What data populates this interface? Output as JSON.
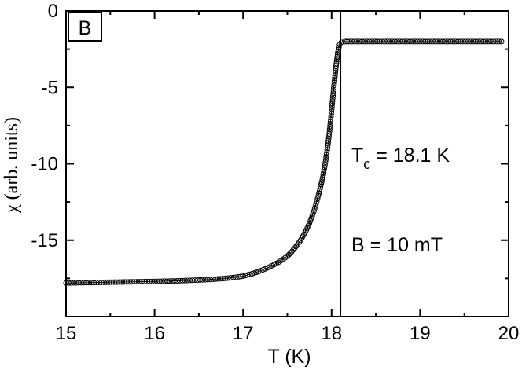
{
  "chart_data": {
    "type": "scatter",
    "panel_label": "B",
    "xlabel": "T (K)",
    "ylabel_symbol": "χ",
    "ylabel_rest": " (arb. units)",
    "xlim": [
      15,
      20
    ],
    "ylim": [
      -20,
      0
    ],
    "x_ticks": [
      15,
      16,
      17,
      18,
      19,
      20
    ],
    "y_ticks": [
      0,
      -5,
      -10,
      -15
    ],
    "y_tick_labels": [
      "0",
      "-5",
      "-10",
      "-15"
    ],
    "vertical_line_x": 18.1,
    "annotations": [
      {
        "name": "tc",
        "main": "T",
        "sub": "c",
        "rest": " = 18.1 K"
      },
      {
        "name": "field",
        "text": "B = 10 mT"
      }
    ],
    "series": [
      {
        "marker": "open-circle",
        "line": true,
        "x": [
          15.0,
          15.2,
          15.4,
          15.6,
          15.8,
          16.0,
          16.2,
          16.4,
          16.6,
          16.8,
          16.95,
          17.0,
          17.1,
          17.2,
          17.3,
          17.4,
          17.5,
          17.55,
          17.6,
          17.65,
          17.7,
          17.75,
          17.8,
          17.85,
          17.9,
          17.93,
          17.95,
          17.97,
          17.99,
          18.01,
          18.03,
          18.05,
          18.07,
          18.09,
          18.11,
          18.15,
          18.2,
          18.4,
          18.6,
          18.8,
          19.0,
          19.2,
          19.4,
          19.6,
          19.8,
          19.92
        ],
        "y": [
          -17.8,
          -17.78,
          -17.76,
          -17.74,
          -17.72,
          -17.7,
          -17.67,
          -17.63,
          -17.58,
          -17.5,
          -17.4,
          -17.35,
          -17.2,
          -17.0,
          -16.75,
          -16.45,
          -16.05,
          -15.75,
          -15.4,
          -15.0,
          -14.5,
          -13.9,
          -13.1,
          -12.1,
          -10.9,
          -9.9,
          -9.1,
          -8.2,
          -7.1,
          -5.9,
          -4.7,
          -3.6,
          -2.7,
          -2.2,
          -2.05,
          -2.0,
          -2.0,
          -2.0,
          -2.0,
          -2.0,
          -2.0,
          -2.0,
          -2.0,
          -2.0,
          -2.0,
          -2.0
        ]
      }
    ]
  }
}
